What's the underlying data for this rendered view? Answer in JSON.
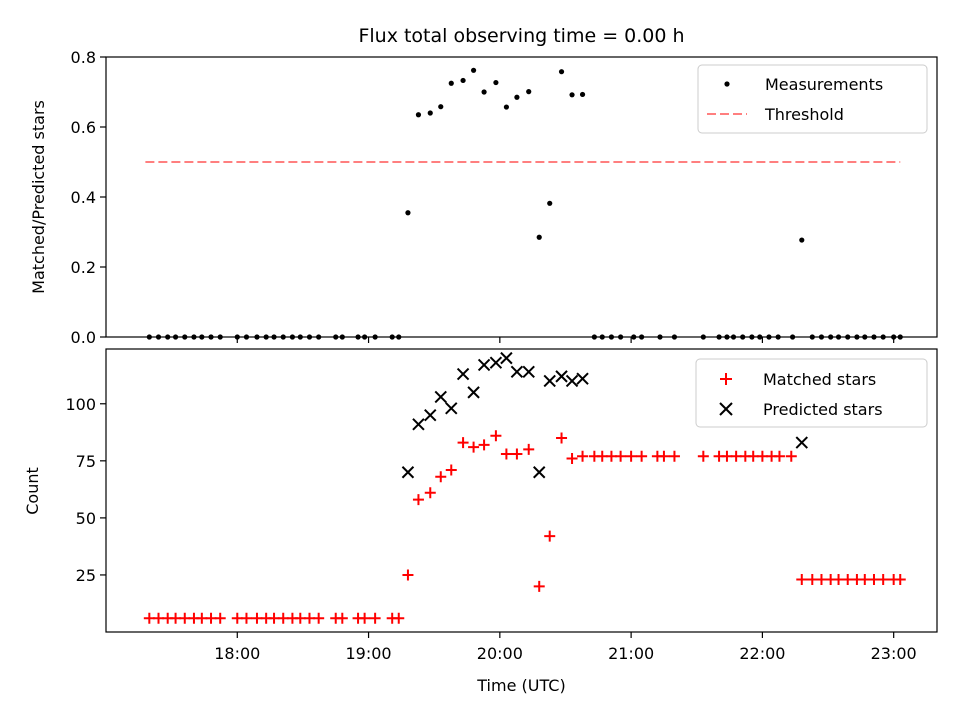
{
  "chart_data": [
    {
      "type": "scatter",
      "title": "Flux total observing time = 0.00 h",
      "xlabel": "",
      "ylabel": "Matched/Predicted stars",
      "xlim": [
        17.0,
        23.33
      ],
      "ylim": [
        0.0,
        0.8
      ],
      "yticks": [
        "0.0",
        "0.2",
        "0.4",
        "0.6",
        "0.8"
      ],
      "yticks_values": [
        0.0,
        0.2,
        0.4,
        0.6,
        0.8
      ],
      "grid": false,
      "legend_position": "top-right",
      "threshold": {
        "name": "Threshold",
        "value": 0.5,
        "x_range": [
          17.3,
          23.05
        ],
        "color": "#ff7f7f"
      },
      "series": [
        {
          "name": "Measurements",
          "color": "#000000",
          "marker": "dot",
          "points": [
            [
              17.33,
              0
            ],
            [
              17.4,
              0
            ],
            [
              17.47,
              0
            ],
            [
              17.53,
              0
            ],
            [
              17.6,
              0
            ],
            [
              17.67,
              0
            ],
            [
              17.73,
              0
            ],
            [
              17.8,
              0
            ],
            [
              17.87,
              0
            ],
            [
              18.0,
              0
            ],
            [
              18.07,
              0
            ],
            [
              18.15,
              0
            ],
            [
              18.22,
              0
            ],
            [
              18.28,
              0
            ],
            [
              18.35,
              0
            ],
            [
              18.42,
              0
            ],
            [
              18.48,
              0
            ],
            [
              18.55,
              0
            ],
            [
              18.62,
              0
            ],
            [
              18.75,
              0
            ],
            [
              18.8,
              0
            ],
            [
              18.92,
              0
            ],
            [
              18.97,
              0
            ],
            [
              19.05,
              0
            ],
            [
              19.18,
              0
            ],
            [
              19.23,
              0
            ],
            [
              19.3,
              0.355
            ],
            [
              19.38,
              0.635
            ],
            [
              19.47,
              0.64
            ],
            [
              19.55,
              0.658
            ],
            [
              19.63,
              0.725
            ],
            [
              19.72,
              0.733
            ],
            [
              19.8,
              0.762
            ],
            [
              19.88,
              0.7
            ],
            [
              19.97,
              0.727
            ],
            [
              20.05,
              0.657
            ],
            [
              20.13,
              0.685
            ],
            [
              20.22,
              0.701
            ],
            [
              20.3,
              0.285
            ],
            [
              20.38,
              0.382
            ],
            [
              20.47,
              0.758
            ],
            [
              20.55,
              0.692
            ],
            [
              20.63,
              0.693
            ],
            [
              20.72,
              0
            ],
            [
              20.78,
              0
            ],
            [
              20.85,
              0
            ],
            [
              20.92,
              0
            ],
            [
              21.02,
              0
            ],
            [
              21.08,
              0
            ],
            [
              21.22,
              0
            ],
            [
              21.33,
              0
            ],
            [
              21.55,
              0
            ],
            [
              21.67,
              0
            ],
            [
              21.73,
              0
            ],
            [
              21.78,
              0
            ],
            [
              21.85,
              0
            ],
            [
              21.92,
              0
            ],
            [
              21.98,
              0
            ],
            [
              22.05,
              0
            ],
            [
              22.12,
              0
            ],
            [
              22.23,
              0
            ],
            [
              22.3,
              0.277
            ],
            [
              22.38,
              0
            ],
            [
              22.45,
              0
            ],
            [
              22.52,
              0
            ],
            [
              22.58,
              0
            ],
            [
              22.65,
              0
            ],
            [
              22.72,
              0
            ],
            [
              22.78,
              0
            ],
            [
              22.85,
              0
            ],
            [
              22.92,
              0
            ],
            [
              23.0,
              0
            ],
            [
              23.05,
              0
            ]
          ]
        }
      ]
    },
    {
      "type": "scatter",
      "title": "",
      "xlabel": "Time (UTC)",
      "ylabel": "Count",
      "xlim": [
        17.0,
        23.33
      ],
      "ylim": [
        0,
        124
      ],
      "xticks": [
        "18:00",
        "19:00",
        "20:00",
        "21:00",
        "22:00",
        "23:00"
      ],
      "xticks_values": [
        18,
        19,
        20,
        21,
        22,
        23
      ],
      "yticks": [
        "25",
        "50",
        "75",
        "100"
      ],
      "yticks_values": [
        25,
        50,
        75,
        100
      ],
      "grid": false,
      "legend_position": "top-right",
      "series": [
        {
          "name": "Matched stars",
          "color": "#ff0000",
          "marker": "plus",
          "points": [
            [
              17.33,
              6
            ],
            [
              17.4,
              6
            ],
            [
              17.47,
              6
            ],
            [
              17.53,
              6
            ],
            [
              17.6,
              6
            ],
            [
              17.67,
              6
            ],
            [
              17.73,
              6
            ],
            [
              17.8,
              6
            ],
            [
              17.87,
              6
            ],
            [
              18.0,
              6
            ],
            [
              18.07,
              6
            ],
            [
              18.15,
              6
            ],
            [
              18.22,
              6
            ],
            [
              18.28,
              6
            ],
            [
              18.35,
              6
            ],
            [
              18.42,
              6
            ],
            [
              18.48,
              6
            ],
            [
              18.55,
              6
            ],
            [
              18.62,
              6
            ],
            [
              18.75,
              6
            ],
            [
              18.8,
              6
            ],
            [
              18.92,
              6
            ],
            [
              18.97,
              6
            ],
            [
              19.05,
              6
            ],
            [
              19.18,
              6
            ],
            [
              19.23,
              6
            ],
            [
              19.3,
              25
            ],
            [
              19.38,
              58
            ],
            [
              19.47,
              61
            ],
            [
              19.55,
              68
            ],
            [
              19.63,
              71
            ],
            [
              19.72,
              83
            ],
            [
              19.8,
              81
            ],
            [
              19.88,
              82
            ],
            [
              19.97,
              86
            ],
            [
              20.05,
              78
            ],
            [
              20.13,
              78
            ],
            [
              20.22,
              80
            ],
            [
              20.3,
              20
            ],
            [
              20.38,
              42
            ],
            [
              20.47,
              85
            ],
            [
              20.55,
              76
            ],
            [
              20.63,
              77
            ],
            [
              20.72,
              77
            ],
            [
              20.78,
              77
            ],
            [
              20.85,
              77
            ],
            [
              20.92,
              77
            ],
            [
              21.0,
              77
            ],
            [
              21.08,
              77
            ],
            [
              21.2,
              77
            ],
            [
              21.25,
              77
            ],
            [
              21.33,
              77
            ],
            [
              21.55,
              77
            ],
            [
              21.67,
              77
            ],
            [
              21.73,
              77
            ],
            [
              21.8,
              77
            ],
            [
              21.87,
              77
            ],
            [
              21.93,
              77
            ],
            [
              22.0,
              77
            ],
            [
              22.07,
              77
            ],
            [
              22.13,
              77
            ],
            [
              22.22,
              77
            ],
            [
              22.3,
              23
            ],
            [
              22.38,
              23
            ],
            [
              22.45,
              23
            ],
            [
              22.52,
              23
            ],
            [
              22.58,
              23
            ],
            [
              22.65,
              23
            ],
            [
              22.72,
              23
            ],
            [
              22.78,
              23
            ],
            [
              22.85,
              23
            ],
            [
              22.92,
              23
            ],
            [
              23.0,
              23
            ],
            [
              23.05,
              23
            ]
          ]
        },
        {
          "name": "Predicted stars",
          "color": "#000000",
          "marker": "x",
          "points": [
            [
              19.3,
              70
            ],
            [
              19.38,
              91
            ],
            [
              19.47,
              95
            ],
            [
              19.55,
              103
            ],
            [
              19.63,
              98
            ],
            [
              19.72,
              113
            ],
            [
              19.8,
              105
            ],
            [
              19.88,
              117
            ],
            [
              19.97,
              118
            ],
            [
              20.05,
              120
            ],
            [
              20.13,
              114
            ],
            [
              20.22,
              114
            ],
            [
              20.3,
              70
            ],
            [
              20.38,
              110
            ],
            [
              20.47,
              112
            ],
            [
              20.55,
              110
            ],
            [
              20.63,
              111
            ],
            [
              22.3,
              83
            ]
          ]
        }
      ]
    }
  ]
}
